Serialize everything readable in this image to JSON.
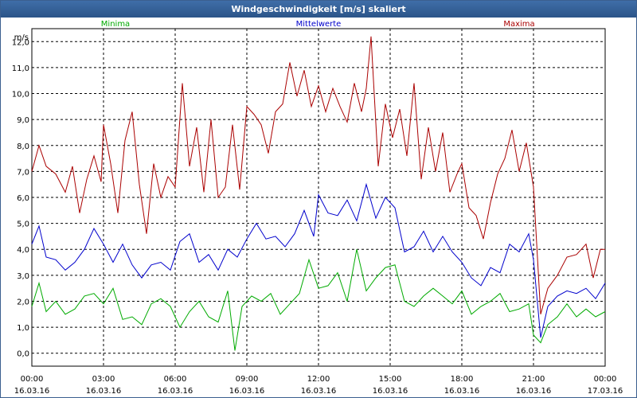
{
  "window": {
    "title": "Windgeschwindigkeit [m/s] skaliert"
  },
  "chart_data": {
    "type": "line",
    "title": "Windgeschwindigkeit [m/s] skaliert",
    "ylabel": "m/s",
    "xlabel": "",
    "ylim": [
      -0.5,
      12.5
    ],
    "xlim": [
      0,
      24
    ],
    "grid": true,
    "legend_position": "top",
    "yticks": [
      0,
      1,
      2,
      3,
      4,
      5,
      6,
      7,
      8,
      9,
      10,
      11,
      12
    ],
    "ytick_labels": [
      "0,0",
      "1,0",
      "2,0",
      "3,0",
      "4,0",
      "5,0",
      "6,0",
      "7,0",
      "8,0",
      "9,0",
      "10,0",
      "11,0",
      "12,0"
    ],
    "xticks": [
      0,
      3,
      6,
      9,
      12,
      15,
      18,
      21,
      24
    ],
    "xtick_labels": [
      [
        "00:00",
        "16.03.16"
      ],
      [
        "03:00",
        "16.03.16"
      ],
      [
        "06:00",
        "16.03.16"
      ],
      [
        "09:00",
        "16.03.16"
      ],
      [
        "12:00",
        "16.03.16"
      ],
      [
        "15:00",
        "16.03.16"
      ],
      [
        "18:00",
        "16.03.16"
      ],
      [
        "21:00",
        "16.03.16"
      ],
      [
        "00:00",
        "17.03.16"
      ]
    ],
    "series": [
      {
        "name": "Minima",
        "color": "#00aa00",
        "points": [
          [
            0,
            1.8
          ],
          [
            0.3,
            2.7
          ],
          [
            0.6,
            1.6
          ],
          [
            1,
            2.0
          ],
          [
            1.4,
            1.5
          ],
          [
            1.8,
            1.7
          ],
          [
            2.2,
            2.2
          ],
          [
            2.6,
            2.3
          ],
          [
            3,
            1.9
          ],
          [
            3.4,
            2.5
          ],
          [
            3.8,
            1.3
          ],
          [
            4.2,
            1.4
          ],
          [
            4.6,
            1.1
          ],
          [
            5,
            1.9
          ],
          [
            5.4,
            2.1
          ],
          [
            5.8,
            1.8
          ],
          [
            6.2,
            1.0
          ],
          [
            6.6,
            1.6
          ],
          [
            7,
            2.0
          ],
          [
            7.4,
            1.4
          ],
          [
            7.8,
            1.2
          ],
          [
            8.2,
            2.4
          ],
          [
            8.5,
            0.1
          ],
          [
            8.8,
            1.8
          ],
          [
            9.2,
            2.2
          ],
          [
            9.6,
            2.0
          ],
          [
            10,
            2.3
          ],
          [
            10.4,
            1.5
          ],
          [
            10.8,
            1.9
          ],
          [
            11.2,
            2.3
          ],
          [
            11.6,
            3.6
          ],
          [
            12,
            2.5
          ],
          [
            12.4,
            2.6
          ],
          [
            12.8,
            3.1
          ],
          [
            13.2,
            2.0
          ],
          [
            13.6,
            4.0
          ],
          [
            14,
            2.4
          ],
          [
            14.4,
            2.9
          ],
          [
            14.8,
            3.3
          ],
          [
            15.2,
            3.4
          ],
          [
            15.6,
            2.0
          ],
          [
            16,
            1.8
          ],
          [
            16.4,
            2.2
          ],
          [
            16.8,
            2.5
          ],
          [
            17.2,
            2.2
          ],
          [
            17.6,
            1.9
          ],
          [
            18,
            2.4
          ],
          [
            18.4,
            1.5
          ],
          [
            18.8,
            1.8
          ],
          [
            19.2,
            2.0
          ],
          [
            19.6,
            2.3
          ],
          [
            20,
            1.6
          ],
          [
            20.4,
            1.7
          ],
          [
            20.8,
            1.9
          ],
          [
            21,
            0.7
          ],
          [
            21.3,
            0.4
          ],
          [
            21.6,
            1.1
          ],
          [
            22,
            1.4
          ],
          [
            22.4,
            1.9
          ],
          [
            22.8,
            1.4
          ],
          [
            23.2,
            1.7
          ],
          [
            23.6,
            1.4
          ],
          [
            24,
            1.6
          ]
        ]
      },
      {
        "name": "Mittelwerte",
        "color": "#0000cc",
        "points": [
          [
            0,
            4.2
          ],
          [
            0.3,
            4.9
          ],
          [
            0.6,
            3.7
          ],
          [
            1,
            3.6
          ],
          [
            1.4,
            3.2
          ],
          [
            1.8,
            3.5
          ],
          [
            2.2,
            4.0
          ],
          [
            2.6,
            4.8
          ],
          [
            3,
            4.2
          ],
          [
            3.4,
            3.5
          ],
          [
            3.8,
            4.2
          ],
          [
            4.2,
            3.4
          ],
          [
            4.6,
            2.9
          ],
          [
            5,
            3.4
          ],
          [
            5.4,
            3.5
          ],
          [
            5.8,
            3.2
          ],
          [
            6.2,
            4.3
          ],
          [
            6.6,
            4.6
          ],
          [
            7,
            3.5
          ],
          [
            7.4,
            3.8
          ],
          [
            7.8,
            3.2
          ],
          [
            8.2,
            4.0
          ],
          [
            8.6,
            3.7
          ],
          [
            9,
            4.4
          ],
          [
            9.4,
            5.0
          ],
          [
            9.8,
            4.4
          ],
          [
            10.2,
            4.5
          ],
          [
            10.6,
            4.1
          ],
          [
            11,
            4.6
          ],
          [
            11.4,
            5.5
          ],
          [
            11.8,
            4.5
          ],
          [
            12,
            6.1
          ],
          [
            12.4,
            5.4
          ],
          [
            12.8,
            5.3
          ],
          [
            13.2,
            5.9
          ],
          [
            13.6,
            5.1
          ],
          [
            14,
            6.5
          ],
          [
            14.4,
            5.2
          ],
          [
            14.8,
            6.0
          ],
          [
            15.2,
            5.6
          ],
          [
            15.6,
            3.9
          ],
          [
            16,
            4.1
          ],
          [
            16.4,
            4.7
          ],
          [
            16.8,
            3.9
          ],
          [
            17.2,
            4.5
          ],
          [
            17.6,
            3.9
          ],
          [
            18,
            3.5
          ],
          [
            18.4,
            2.9
          ],
          [
            18.8,
            2.6
          ],
          [
            19.2,
            3.3
          ],
          [
            19.6,
            3.1
          ],
          [
            20,
            4.2
          ],
          [
            20.4,
            3.9
          ],
          [
            20.8,
            4.6
          ],
          [
            21,
            3.6
          ],
          [
            21.3,
            0.6
          ],
          [
            21.6,
            1.8
          ],
          [
            22,
            2.2
          ],
          [
            22.4,
            2.4
          ],
          [
            22.8,
            2.3
          ],
          [
            23.2,
            2.5
          ],
          [
            23.6,
            2.1
          ],
          [
            24,
            2.7
          ]
        ]
      },
      {
        "name": "Maxima",
        "color": "#aa0000",
        "points": [
          [
            0,
            7.0
          ],
          [
            0.3,
            8.0
          ],
          [
            0.6,
            7.2
          ],
          [
            1,
            6.9
          ],
          [
            1.4,
            6.2
          ],
          [
            1.7,
            7.2
          ],
          [
            2.0,
            5.4
          ],
          [
            2.3,
            6.7
          ],
          [
            2.6,
            7.6
          ],
          [
            2.9,
            6.6
          ],
          [
            3.0,
            8.8
          ],
          [
            3.3,
            7.3
          ],
          [
            3.6,
            5.4
          ],
          [
            3.9,
            8.2
          ],
          [
            4.2,
            9.3
          ],
          [
            4.5,
            6.5
          ],
          [
            4.8,
            4.6
          ],
          [
            5.1,
            7.3
          ],
          [
            5.4,
            6.0
          ],
          [
            5.7,
            6.8
          ],
          [
            6.0,
            6.4
          ],
          [
            6.3,
            10.4
          ],
          [
            6.6,
            7.2
          ],
          [
            6.9,
            8.7
          ],
          [
            7.2,
            6.2
          ],
          [
            7.5,
            9.0
          ],
          [
            7.8,
            6.0
          ],
          [
            8.1,
            6.4
          ],
          [
            8.4,
            8.8
          ],
          [
            8.7,
            6.3
          ],
          [
            9.0,
            9.5
          ],
          [
            9.3,
            9.2
          ],
          [
            9.6,
            8.8
          ],
          [
            9.9,
            7.7
          ],
          [
            10.2,
            9.3
          ],
          [
            10.5,
            9.6
          ],
          [
            10.8,
            11.2
          ],
          [
            11.1,
            9.9
          ],
          [
            11.4,
            10.9
          ],
          [
            11.7,
            9.5
          ],
          [
            12.0,
            10.3
          ],
          [
            12.3,
            9.3
          ],
          [
            12.6,
            10.2
          ],
          [
            12.9,
            9.5
          ],
          [
            13.2,
            8.9
          ],
          [
            13.5,
            10.4
          ],
          [
            13.8,
            9.3
          ],
          [
            14.0,
            10.2
          ],
          [
            14.2,
            12.2
          ],
          [
            14.5,
            7.2
          ],
          [
            14.8,
            9.6
          ],
          [
            15.1,
            8.3
          ],
          [
            15.4,
            9.4
          ],
          [
            15.7,
            7.6
          ],
          [
            16.0,
            10.4
          ],
          [
            16.3,
            6.7
          ],
          [
            16.6,
            8.7
          ],
          [
            16.9,
            7.0
          ],
          [
            17.2,
            8.5
          ],
          [
            17.5,
            6.2
          ],
          [
            17.8,
            6.9
          ],
          [
            18.0,
            7.3
          ],
          [
            18.3,
            5.6
          ],
          [
            18.6,
            5.3
          ],
          [
            18.9,
            4.4
          ],
          [
            19.2,
            5.8
          ],
          [
            19.5,
            6.9
          ],
          [
            19.8,
            7.5
          ],
          [
            20.1,
            8.6
          ],
          [
            20.4,
            7.0
          ],
          [
            20.7,
            8.1
          ],
          [
            21.0,
            6.4
          ],
          [
            21.3,
            1.5
          ],
          [
            21.6,
            2.5
          ],
          [
            22.0,
            3.0
          ],
          [
            22.4,
            3.7
          ],
          [
            22.8,
            3.8
          ],
          [
            23.2,
            4.2
          ],
          [
            23.5,
            2.9
          ],
          [
            23.8,
            4.0
          ],
          [
            24,
            4.0
          ]
        ]
      }
    ]
  }
}
